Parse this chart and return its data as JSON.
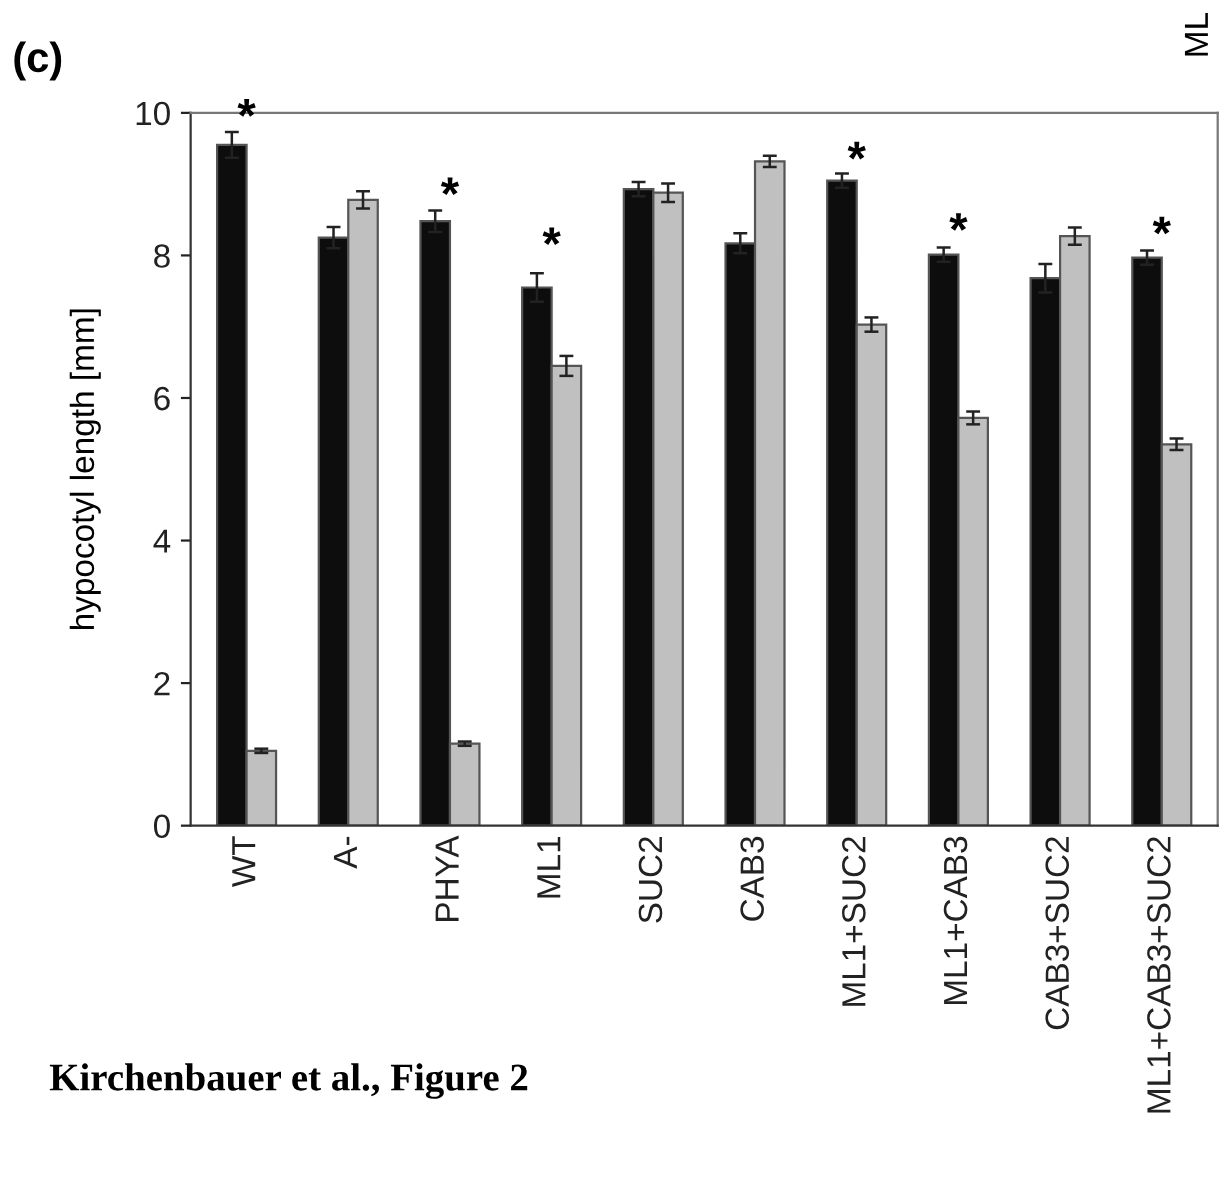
{
  "chart_data": {
    "type": "bar",
    "title": "(c)",
    "ylabel": "hypocotyl length [mm]",
    "categories": [
      "WT",
      "A-",
      "PHYA",
      "ML1",
      "SUC2",
      "CAB3",
      "ML1+SUC2",
      "ML1+CAB3",
      "CAB3+SUC2",
      "ML1+CAB3+SUC2"
    ],
    "series": [
      {
        "color": "#0d0d0d",
        "values": [
          9.55,
          8.25,
          8.48,
          7.55,
          8.93,
          8.17,
          9.05,
          8.01,
          7.68,
          7.97
        ],
        "errors": [
          0.18,
          0.15,
          0.15,
          0.2,
          0.1,
          0.14,
          0.1,
          0.1,
          0.2,
          0.1
        ]
      },
      {
        "color": "#c0c0c0",
        "values": [
          1.05,
          8.78,
          1.15,
          6.45,
          8.88,
          9.32,
          7.03,
          5.72,
          8.27,
          5.35
        ],
        "errors": [
          0.03,
          0.12,
          0.03,
          0.14,
          0.13,
          0.08,
          0.1,
          0.09,
          0.12,
          0.08
        ]
      }
    ],
    "ylim": [
      0,
      10
    ],
    "yticks": [
      0,
      2,
      4,
      6,
      8,
      10
    ],
    "grid": false,
    "legend": false,
    "annotations": [
      {
        "text": "*",
        "x": "WT",
        "y": 9.6
      },
      {
        "text": "*",
        "x": "PHYA",
        "y": 8.5
      },
      {
        "text": "*",
        "x": "ML1",
        "y": 7.8
      },
      {
        "text": "*",
        "x": "ML1+SUC2",
        "y": 9.0
      },
      {
        "text": "*",
        "x": "ML1+CAB3",
        "y": 8.0
      },
      {
        "text": "*",
        "x": "ML1+CAB3+SUC2",
        "y": 7.95
      },
      "ML",
      "Kirchenbauer et al., Figure 2"
    ]
  }
}
